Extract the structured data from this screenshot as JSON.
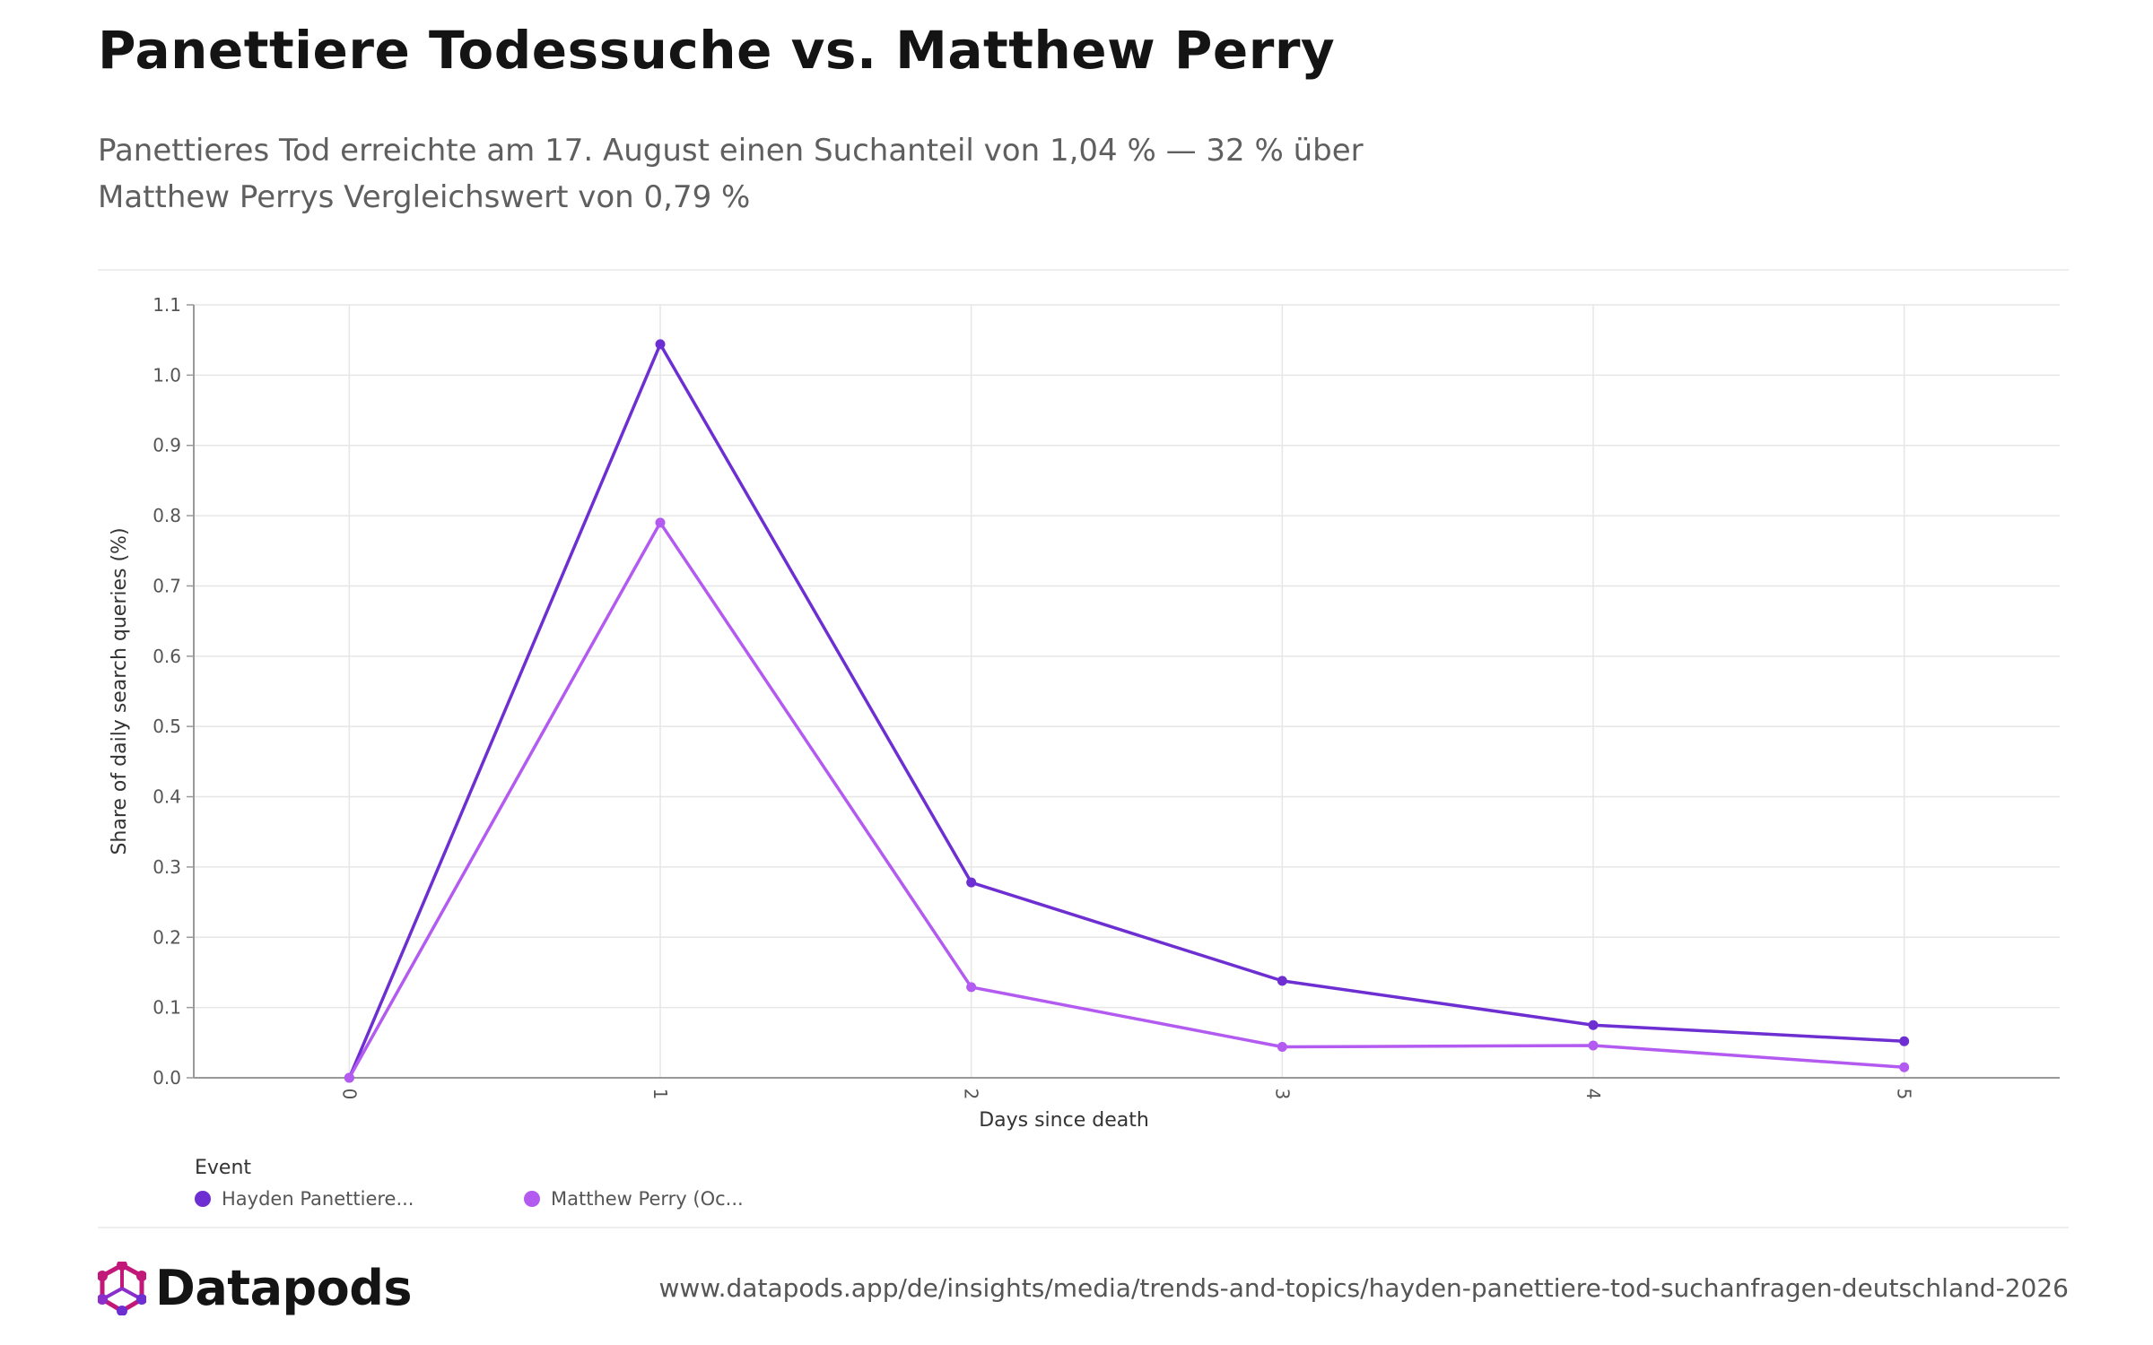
{
  "header": {
    "title": "Panettiere Todessuche vs. Matthew Perry",
    "subtitle": "Panettieres Tod erreichte am 17. August einen Suchanteil von 1,04 % — 32 % über Matthew Perrys Vergleichswert von 0,79 %"
  },
  "chart_data": {
    "type": "line",
    "xlabel": "Days since death",
    "ylabel": "Share of daily search queries (%)",
    "x": [
      0,
      1,
      2,
      3,
      4,
      5
    ],
    "x_tick_labels": [
      "0",
      "1",
      "2",
      "3",
      "4",
      "5"
    ],
    "y_ticks": [
      0.0,
      0.1,
      0.2,
      0.3,
      0.4,
      0.5,
      0.6,
      0.7,
      0.8,
      0.9,
      1.0,
      1.1
    ],
    "y_tick_labels": [
      "0.0",
      "0.1",
      "0.2",
      "0.3",
      "0.4",
      "0.5",
      "0.6",
      "0.7",
      "0.8",
      "0.9",
      "1.0",
      "1.1"
    ],
    "xlim": [
      -0.5,
      5.5
    ],
    "ylim": [
      0,
      1.1
    ],
    "grid": true,
    "legend_position": "bottom-left",
    "series": [
      {
        "name": "Hayden Panettiere...",
        "color": "#6d2fd1",
        "values": [
          0.0,
          1.044,
          0.278,
          0.138,
          0.075,
          0.052
        ]
      },
      {
        "name": "Matthew Perry (Oc...",
        "color": "#b35af0",
        "values": [
          0.0,
          0.79,
          0.129,
          0.044,
          0.046,
          0.015
        ]
      }
    ]
  },
  "legend": {
    "title": "Event"
  },
  "footer": {
    "brand": "Datapods",
    "url": "www.datapods.app/de/insights/media/trends-and-topics/hayden-panettiere-tod-suchanfragen-deutschland-2026"
  },
  "colors": {
    "grid": "#e6e6e6",
    "axis": "#999999",
    "logo_magenta": "#c2187a",
    "logo_purple": "#6d2fd1"
  }
}
